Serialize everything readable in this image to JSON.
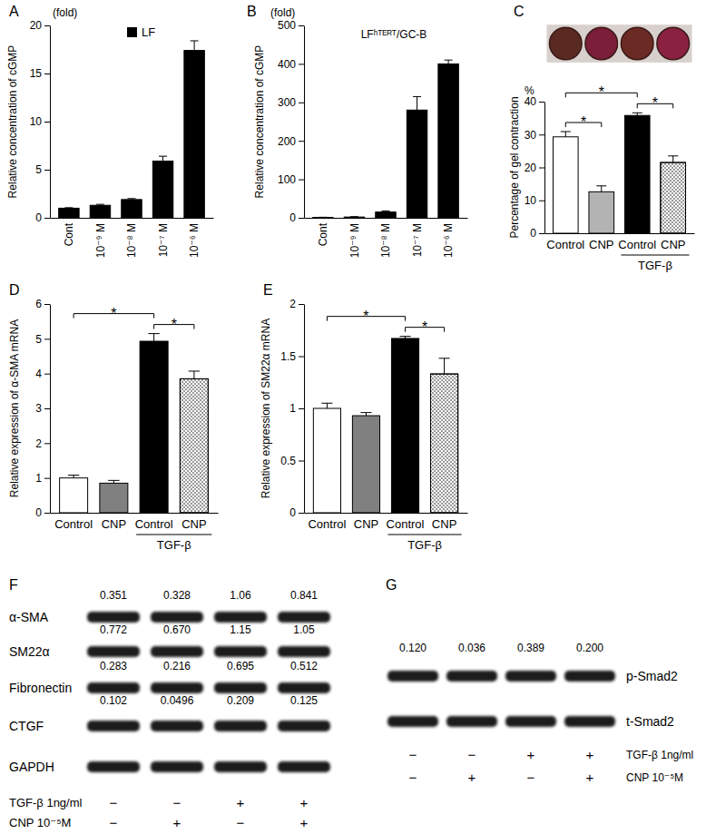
{
  "chart_data": [
    {
      "type": "bar",
      "panel": "A",
      "y_unit": "(fold)",
      "ylabel": "Relative concentration of cGMP",
      "categories": [
        "Cont",
        "10⁻⁹ M",
        "10⁻⁸ M",
        "10⁻⁷ M",
        "10⁻⁶ M"
      ],
      "series": [
        {
          "name": "LF",
          "color": "#000000",
          "values": [
            1,
            1.3,
            1.9,
            5.9,
            17.4
          ],
          "errors": [
            0.05,
            0.1,
            0.1,
            0.5,
            1.0
          ]
        }
      ],
      "ylim": [
        0,
        20
      ],
      "yticks": [
        0,
        5,
        10,
        15,
        20
      ],
      "legend": "top-right"
    },
    {
      "type": "bar",
      "panel": "B",
      "y_unit": "(fold)",
      "subtitle": "LFʰᵀᴱᴿᵀ/GC-B",
      "ylabel": "Relative concentration of cGMP",
      "categories": [
        "Cont",
        "10⁻⁹ M",
        "10⁻⁸ M",
        "10⁻⁷ M",
        "10⁻⁶ M"
      ],
      "series": [
        {
          "color": "#000000",
          "values": [
            1,
            2,
            15,
            280,
            400
          ],
          "errors": [
            0.5,
            1,
            3,
            35,
            10
          ]
        }
      ],
      "ylim": [
        0,
        500
      ],
      "yticks": [
        0,
        100,
        200,
        300,
        400,
        500
      ]
    },
    {
      "type": "bar",
      "panel": "C",
      "y_unit": "%",
      "ylabel": "Percentage of gel contraction",
      "categories": [
        "Control",
        "CNP",
        "Control",
        "CNP"
      ],
      "groups": [
        {
          "label": "TGF-β",
          "from": 2,
          "to": 3
        }
      ],
      "series": [
        {
          "colors": [
            "#ffffff",
            "#b3b3b3",
            "#000000",
            "#ffffff"
          ],
          "values": [
            29.3,
            12.6,
            35.8,
            21.5
          ],
          "errors": [
            1.6,
            1.8,
            0.8,
            2.0
          ]
        }
      ],
      "ylim": [
        0,
        40
      ],
      "yticks": [
        0,
        10,
        20,
        30,
        40
      ],
      "annotations": [
        {
          "text": "*",
          "from": 0,
          "to": 1
        },
        {
          "text": "*",
          "from": 2,
          "to": 3
        },
        {
          "text": "*",
          "from": 0,
          "to": 2
        }
      ]
    },
    {
      "type": "bar",
      "panel": "D",
      "ylabel": "Relative expression of α-SMA mRNA",
      "categories": [
        "Control",
        "CNP",
        "Control",
        "CNP"
      ],
      "groups": [
        {
          "label": "TGF-β",
          "from": 2,
          "to": 3
        }
      ],
      "series": [
        {
          "colors": [
            "#ffffff",
            "#808080",
            "#000000",
            "#ffffff"
          ],
          "values": [
            1.0,
            0.85,
            4.93,
            3.85
          ],
          "errors": [
            0.08,
            0.08,
            0.22,
            0.22
          ]
        }
      ],
      "ylim": [
        0,
        6
      ],
      "yticks": [
        0,
        1,
        2,
        3,
        4,
        5,
        6
      ],
      "annotations": [
        {
          "text": "*",
          "from": 2,
          "to": 3
        },
        {
          "text": "*",
          "from": 0,
          "to": 2
        }
      ]
    },
    {
      "type": "bar",
      "panel": "E",
      "ylabel": "Relative expression of SM22α mRNA",
      "categories": [
        "Control",
        "CNP",
        "Control",
        "CNP"
      ],
      "groups": [
        {
          "label": "TGF-β",
          "from": 2,
          "to": 3
        }
      ],
      "series": [
        {
          "colors": [
            "#ffffff",
            "#808080",
            "#000000",
            "#ffffff"
          ],
          "values": [
            1.0,
            0.93,
            1.67,
            1.33
          ],
          "errors": [
            0.05,
            0.03,
            0.02,
            0.15
          ]
        }
      ],
      "ylim": [
        0,
        2
      ],
      "yticks": [
        0,
        0.5,
        1,
        1.5,
        2
      ],
      "annotations": [
        {
          "text": "*",
          "from": 2,
          "to": 3
        },
        {
          "text": "*",
          "from": 0,
          "to": 2
        }
      ]
    }
  ],
  "blots": [
    {
      "panel": "F",
      "rows": [
        {
          "label": "α-SMA",
          "values": [
            "0.351",
            "0.328",
            "1.06",
            "0.841"
          ]
        },
        {
          "label": "SM22α",
          "values": [
            "0.772",
            "0.670",
            "1.15",
            "1.05"
          ]
        },
        {
          "label": "Fibronectin",
          "values": [
            "0.283",
            "0.216",
            "0.695",
            "0.512"
          ]
        },
        {
          "label": "CTGF",
          "values": [
            "0.102",
            "0.0496",
            "0.209",
            "0.125"
          ]
        },
        {
          "label": "GAPDH"
        }
      ],
      "conditions": [
        {
          "label": "TGF-β 1ng/ml",
          "signs": [
            "−",
            "−",
            "+",
            "+"
          ]
        },
        {
          "label": "CNP 10⁻⁵M",
          "signs": [
            "−",
            "+",
            "−",
            "+"
          ]
        }
      ]
    },
    {
      "panel": "G",
      "rows": [
        {
          "label": "p-Smad2",
          "values": [
            "0.120",
            "0.036",
            "0.389",
            "0.200"
          ]
        },
        {
          "label": "t-Smad2"
        }
      ],
      "conditions": [
        {
          "label": "TGF-β 1ng/ml",
          "signs": [
            "−",
            "−",
            "+",
            "+"
          ]
        },
        {
          "label": "CNP 10⁻⁵M",
          "signs": [
            "−",
            "+",
            "−",
            "+"
          ]
        }
      ]
    }
  ]
}
